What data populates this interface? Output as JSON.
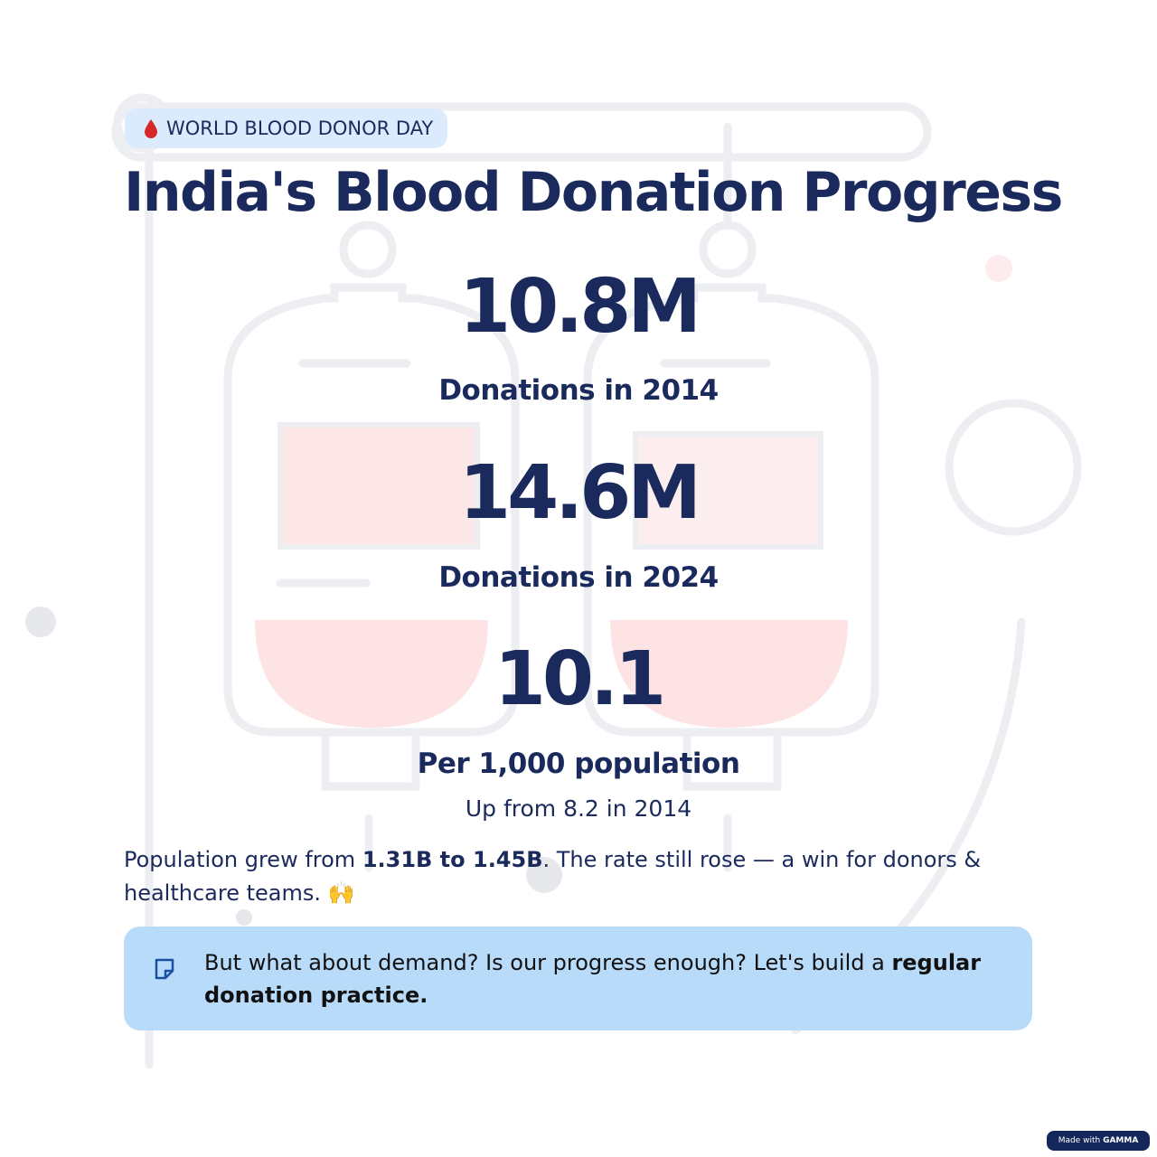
{
  "badge": {
    "text": "WORLD BLOOD DONOR DAY"
  },
  "title": "India's Blood Donation Progress",
  "stats": [
    {
      "value": "10.8M",
      "label": "Donations in 2014"
    },
    {
      "value": "14.6M",
      "label": "Donations in 2024"
    },
    {
      "value": "10.1",
      "label": "Per 1,000 population",
      "note": "Up from 8.2 in 2014"
    }
  ],
  "paragraph": {
    "parts": [
      "Population grew from ",
      "1.31B to 1.45B",
      ". The rate still rose — a win for donors & healthcare teams. 🙌"
    ]
  },
  "callout": {
    "parts": [
      "But what about demand? Is our progress enough? Let's build a ",
      "regular donation practice."
    ]
  },
  "footer": {
    "text": "Made with",
    "brand": "GAMMA"
  }
}
